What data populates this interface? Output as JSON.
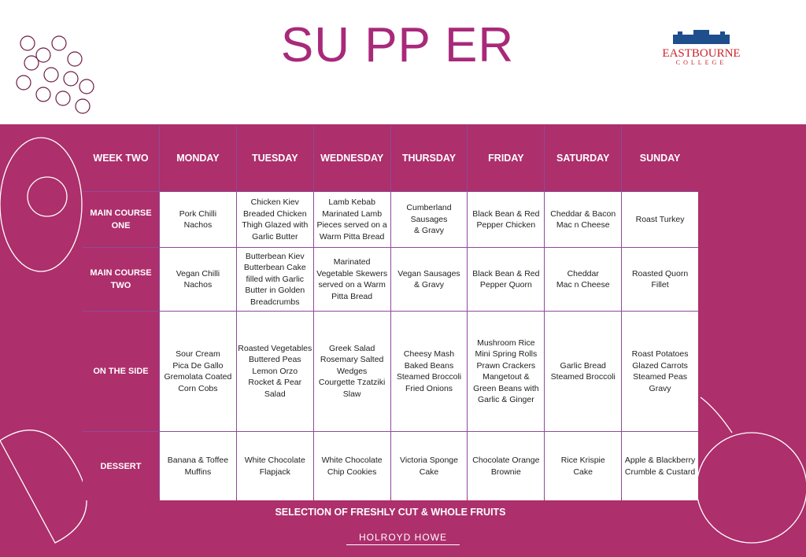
{
  "header": {
    "title": "SU PP ER",
    "logo_name": "EASTBOURNE",
    "logo_sub": "COLLEGE"
  },
  "table": {
    "header": [
      "WEEK TWO",
      "MONDAY",
      "TUESDAY",
      "WEDNESDAY",
      "THURSDAY",
      "FRIDAY",
      "SATURDAY",
      "SUNDAY"
    ],
    "rows": [
      {
        "label": "MAIN COURSE ONE",
        "cells": [
          [
            "Pork Chilli",
            "Nachos"
          ],
          [
            "Chicken Kiev",
            "Breaded Chicken",
            "Thigh Glazed with",
            "Garlic Butter"
          ],
          [
            "Lamb Kebab",
            "Marinated Lamb",
            "Pieces served on a",
            "Warm Pitta Bread"
          ],
          [
            "Cumberland",
            "Sausages",
            "& Gravy"
          ],
          [
            "Black Bean & Red",
            "Pepper Chicken"
          ],
          [
            "Cheddar & Bacon",
            "Mac n Cheese"
          ],
          [
            "Roast Turkey"
          ]
        ]
      },
      {
        "label": "MAIN COURSE TWO",
        "cells": [
          [
            "Vegan Chilli",
            "Nachos"
          ],
          [
            "Butterbean Kiev",
            "Butterbean Cake",
            "filled with Garlic",
            "Butter in Golden",
            "Breadcrumbs"
          ],
          [
            "Marinated",
            "Vegetable Skewers",
            "served on a Warm",
            "Pitta Bread"
          ],
          [
            "Vegan Sausages",
            "& Gravy"
          ],
          [
            "Black Bean & Red",
            "Pepper Quorn"
          ],
          [
            "Cheddar",
            "Mac n Cheese"
          ],
          [
            "Roasted Quorn",
            "Fillet"
          ]
        ]
      },
      {
        "label": "ON THE SIDE",
        "cells": [
          [
            "Sour Cream",
            "Pica De Gallo",
            "Gremolata Coated",
            "Corn Cobs"
          ],
          [
            "Roasted Vegetables",
            "Buttered Peas",
            "Lemon Orzo",
            "Rocket & Pear",
            "Salad"
          ],
          [
            "Greek Salad",
            "Rosemary Salted",
            "Wedges",
            "Courgette Tzatziki",
            "Slaw"
          ],
          [
            "Cheesy Mash",
            "Baked Beans",
            "Steamed Broccoli",
            "Fried Onions"
          ],
          [
            "Mushroom Rice",
            "Mini Spring Rolls",
            "Prawn Crackers",
            "Mangetout &",
            "Green Beans with",
            "Garlic & Ginger"
          ],
          [
            "Garlic Bread",
            "Steamed Broccoli"
          ],
          [
            "Roast Potatoes",
            "Glazed Carrots",
            "Steamed Peas",
            "Gravy"
          ]
        ]
      },
      {
        "label": "DESSERT",
        "cells": [
          [
            "Banana & Toffee",
            "Muffins"
          ],
          [
            "White Chocolate",
            "Flapjack"
          ],
          [
            "White Chocolate",
            "Chip Cookies"
          ],
          [
            "Victoria Sponge",
            "Cake"
          ],
          [
            "Chocolate Orange",
            "Brownie"
          ],
          [
            "Rice Krispie",
            "Cake"
          ],
          [
            "Apple & Blackberry",
            "Crumble & Custard"
          ]
        ]
      }
    ],
    "footer": "SELECTION OF FRESHLY CUT & WHOLE FRUITS"
  },
  "brand": "HOLROYD HOWE"
}
